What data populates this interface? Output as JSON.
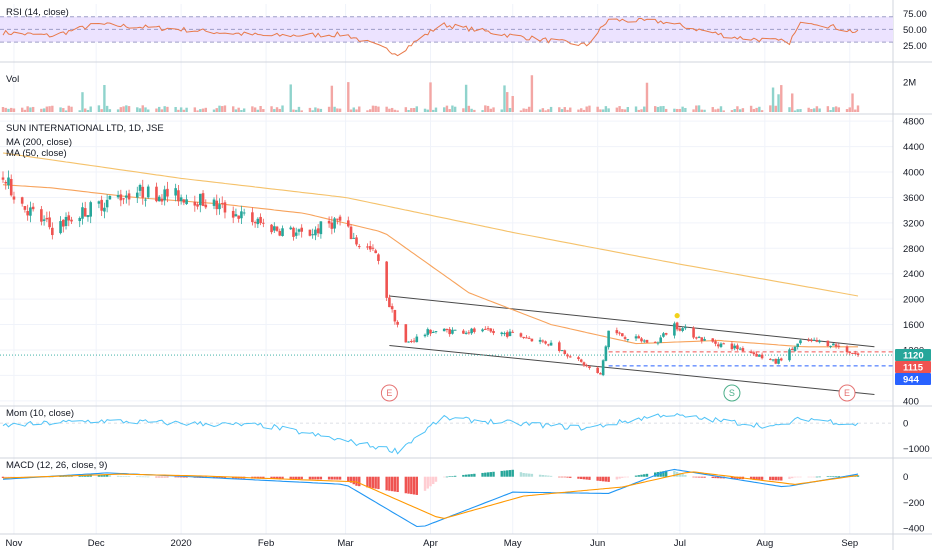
{
  "colors": {
    "up": "#26a69a",
    "down": "#ef5350",
    "ma200": "#f5c26b",
    "ma50": "#f7a35c",
    "rsi_line": "#e8794a",
    "rsi_band": "#ece3ff",
    "mom_line": "#4fc3f7",
    "macd_line": "#2196f3",
    "signal_line": "#ff9800",
    "channel": "#4a4a4a",
    "tag_green": "#26a69a",
    "tag_red": "#ef5350",
    "tag_blue": "#2962ff",
    "earn": "#e57373",
    "split": "#4caf8a",
    "div_dot": "#f2d21b",
    "pane_sep": "#d1d4dc"
  },
  "rsi": {
    "label": "RSI (14, close)",
    "ticks": [
      "75.00",
      "50.00",
      "25.00"
    ],
    "tick_values": [
      75,
      50,
      25
    ],
    "band": [
      30,
      70
    ],
    "range": [
      5,
      90
    ]
  },
  "volume": {
    "label": "Vol",
    "ticks": [
      "2M"
    ],
    "tick_values": [
      2
    ],
    "range": [
      0,
      2.8
    ]
  },
  "main": {
    "title": "SUN INTERNATIONAL LTD, 1D, JSE",
    "ma200_label": "MA (200, close)",
    "ma50_label": "MA (50, close)",
    "ticks": [
      "4800",
      "4400",
      "4000",
      "3600",
      "3200",
      "2800",
      "2400",
      "2000",
      "1600",
      "1200",
      "800",
      "400"
    ],
    "tick_values": [
      4800,
      4400,
      4000,
      3600,
      3200,
      2800,
      2400,
      2000,
      1600,
      1200,
      800,
      400
    ],
    "range": [
      350,
      4850
    ],
    "price_tags": [
      {
        "text": "1120",
        "value": 1120,
        "color": "tag_green"
      },
      {
        "text": "1115",
        "value": 1115,
        "color": "tag_red"
      },
      {
        "text": "944",
        "value": 944,
        "color": "tag_blue"
      }
    ],
    "events": [
      {
        "text": "E",
        "date": "2020-03-17",
        "type": "earn"
      },
      {
        "text": "S",
        "date": "2020-07-20",
        "type": "split"
      },
      {
        "text": "E",
        "date": "2020-08-31",
        "type": "earn"
      }
    ]
  },
  "momentum": {
    "label": "Mom (10, close)",
    "ticks": [
      "0",
      "−1000"
    ],
    "tick_values": [
      0,
      -1000
    ],
    "range": [
      -1300,
      600
    ]
  },
  "macd": {
    "label": "MACD (12, 26, close, 9)",
    "ticks": [
      "0",
      "−200",
      "−400"
    ],
    "tick_values": [
      0,
      -200,
      -400
    ],
    "range": [
      -430,
      130
    ]
  },
  "time_axis": {
    "labels": [
      "Nov",
      "Dec",
      "2020",
      "Feb",
      "Mar",
      "Apr",
      "May",
      "Jun",
      "Jul",
      "Aug",
      "Sep"
    ],
    "dates": [
      "2019-11-01",
      "2019-12-01",
      "2020-01-01",
      "2020-02-01",
      "2020-03-01",
      "2020-04-01",
      "2020-05-01",
      "2020-06-01",
      "2020-07-01",
      "2020-08-01",
      "2020-09-01"
    ]
  },
  "chart_data": {
    "type": "candlestick",
    "title": "SUN INTERNATIONAL LTD, 1D, JSE",
    "x_range": [
      "2019-10-28",
      "2020-09-04"
    ],
    "y_range": [
      350,
      4850
    ],
    "price_anchors": [
      {
        "date": "2019-10-28",
        "price": 3900
      },
      {
        "date": "2019-11-05",
        "price": 3450
      },
      {
        "date": "2019-11-15",
        "price": 3100
      },
      {
        "date": "2019-11-25",
        "price": 3350
      },
      {
        "date": "2019-12-05",
        "price": 3550
      },
      {
        "date": "2019-12-15",
        "price": 3700
      },
      {
        "date": "2020-01-05",
        "price": 3600
      },
      {
        "date": "2020-01-15",
        "price": 3450
      },
      {
        "date": "2020-02-01",
        "price": 3150
      },
      {
        "date": "2020-02-15",
        "price": 3000
      },
      {
        "date": "2020-02-27",
        "price": 3250
      },
      {
        "date": "2020-03-05",
        "price": 2900
      },
      {
        "date": "2020-03-12",
        "price": 2700
      },
      {
        "date": "2020-03-17",
        "price": 1900
      },
      {
        "date": "2020-03-23",
        "price": 1300
      },
      {
        "date": "2020-04-01",
        "price": 1500
      },
      {
        "date": "2020-04-15",
        "price": 1500
      },
      {
        "date": "2020-05-01",
        "price": 1450
      },
      {
        "date": "2020-05-15",
        "price": 1300
      },
      {
        "date": "2020-05-26",
        "price": 1000
      },
      {
        "date": "2020-06-02",
        "price": 800
      },
      {
        "date": "2020-06-05",
        "price": 1500
      },
      {
        "date": "2020-06-12",
        "price": 1400
      },
      {
        "date": "2020-06-22",
        "price": 1300
      },
      {
        "date": "2020-06-29",
        "price": 1600
      },
      {
        "date": "2020-07-10",
        "price": 1350
      },
      {
        "date": "2020-07-25",
        "price": 1200
      },
      {
        "date": "2020-08-05",
        "price": 1000
      },
      {
        "date": "2020-08-15",
        "price": 1350
      },
      {
        "date": "2020-08-25",
        "price": 1300
      },
      {
        "date": "2020-09-04",
        "price": 1120
      }
    ],
    "ma200": [
      {
        "date": "2019-10-28",
        "value": 4300
      },
      {
        "date": "2020-01-01",
        "value": 3900
      },
      {
        "date": "2020-03-01",
        "value": 3600
      },
      {
        "date": "2020-05-01",
        "value": 3050
      },
      {
        "date": "2020-07-01",
        "value": 2550
      },
      {
        "date": "2020-09-04",
        "value": 2050
      }
    ],
    "ma50": [
      {
        "date": "2019-10-28",
        "value": 3800
      },
      {
        "date": "2019-11-15",
        "value": 3750
      },
      {
        "date": "2019-12-15",
        "value": 3600
      },
      {
        "date": "2020-01-15",
        "value": 3500
      },
      {
        "date": "2020-02-15",
        "value": 3350
      },
      {
        "date": "2020-03-15",
        "value": 3050
      },
      {
        "date": "2020-04-15",
        "value": 2100
      },
      {
        "date": "2020-05-15",
        "value": 1600
      },
      {
        "date": "2020-06-15",
        "value": 1300
      },
      {
        "date": "2020-07-15",
        "value": 1350
      },
      {
        "date": "2020-08-15",
        "value": 1250
      },
      {
        "date": "2020-09-04",
        "value": 1250
      }
    ],
    "channel": {
      "upper": [
        {
          "date": "2020-03-17",
          "value": 2050
        },
        {
          "date": "2020-09-10",
          "value": 1250
        }
      ],
      "lower": [
        {
          "date": "2020-03-17",
          "value": 1270
        },
        {
          "date": "2020-09-10",
          "value": 500
        }
      ]
    },
    "horizontal_levels": [
      1170,
      950
    ],
    "last_close": 1120,
    "rsi_anchors": [
      {
        "date": "2019-10-28",
        "value": 45
      },
      {
        "date": "2019-11-15",
        "value": 40
      },
      {
        "date": "2019-12-01",
        "value": 58
      },
      {
        "date": "2020-01-01",
        "value": 50
      },
      {
        "date": "2020-02-01",
        "value": 40
      },
      {
        "date": "2020-03-01",
        "value": 42
      },
      {
        "date": "2020-03-20",
        "value": 12
      },
      {
        "date": "2020-04-05",
        "value": 58
      },
      {
        "date": "2020-05-01",
        "value": 40
      },
      {
        "date": "2020-05-28",
        "value": 25
      },
      {
        "date": "2020-06-05",
        "value": 65
      },
      {
        "date": "2020-06-25",
        "value": 62
      },
      {
        "date": "2020-07-20",
        "value": 38
      },
      {
        "date": "2020-08-10",
        "value": 30
      },
      {
        "date": "2020-08-15",
        "value": 65
      },
      {
        "date": "2020-09-04",
        "value": 45
      }
    ],
    "mom_anchors": [
      {
        "date": "2019-10-28",
        "value": -100
      },
      {
        "date": "2019-12-01",
        "value": 100
      },
      {
        "date": "2020-02-01",
        "value": -100
      },
      {
        "date": "2020-03-20",
        "value": -1100
      },
      {
        "date": "2020-04-05",
        "value": 200
      },
      {
        "date": "2020-05-28",
        "value": -200
      },
      {
        "date": "2020-06-25",
        "value": 350
      },
      {
        "date": "2020-08-05",
        "value": -150
      },
      {
        "date": "2020-08-15",
        "value": 200
      },
      {
        "date": "2020-09-04",
        "value": -50
      }
    ],
    "macd_anchors": [
      {
        "date": "2019-10-28",
        "value": -20
      },
      {
        "date": "2019-12-05",
        "value": 30
      },
      {
        "date": "2020-01-05",
        "value": 0
      },
      {
        "date": "2020-03-01",
        "value": -60
      },
      {
        "date": "2020-03-28",
        "value": -400
      },
      {
        "date": "2020-05-01",
        "value": -120
      },
      {
        "date": "2020-06-05",
        "value": -130
      },
      {
        "date": "2020-06-28",
        "value": 60
      },
      {
        "date": "2020-08-08",
        "value": -80
      },
      {
        "date": "2020-09-04",
        "value": 20
      }
    ],
    "signal_anchors": [
      {
        "date": "2019-10-28",
        "value": -10
      },
      {
        "date": "2019-12-10",
        "value": 20
      },
      {
        "date": "2020-01-10",
        "value": 5
      },
      {
        "date": "2020-03-05",
        "value": -40
      },
      {
        "date": "2020-04-05",
        "value": -330
      },
      {
        "date": "2020-05-05",
        "value": -150
      },
      {
        "date": "2020-06-10",
        "value": -80
      },
      {
        "date": "2020-07-05",
        "value": 40
      },
      {
        "date": "2020-08-12",
        "value": -60
      },
      {
        "date": "2020-09-04",
        "value": 10
      }
    ]
  }
}
